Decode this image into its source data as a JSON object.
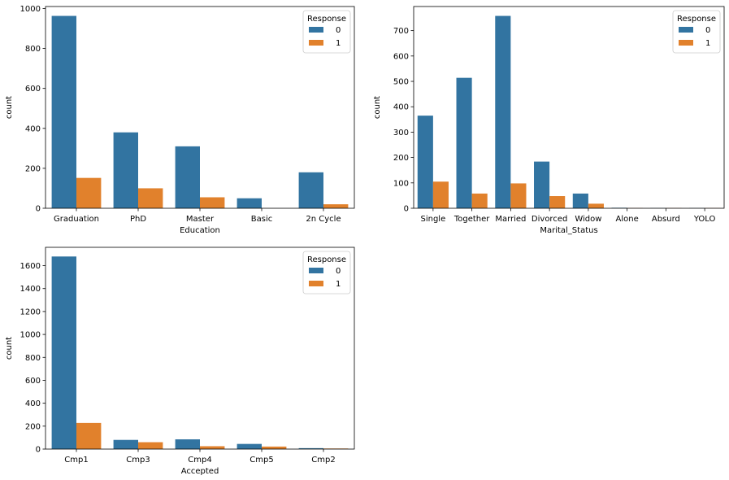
{
  "colors": {
    "series0": "#3274a1",
    "series1": "#e1812c"
  },
  "chart_data": [
    {
      "type": "bar",
      "xlabel": "Education",
      "ylabel": "count",
      "ylim": [
        0,
        1010
      ],
      "yticks": [
        0,
        200,
        400,
        600,
        800,
        1000
      ],
      "categories": [
        "Graduation",
        "PhD",
        "Master",
        "Basic",
        "2n Cycle"
      ],
      "legend": {
        "title": "Response",
        "position": "top-right"
      },
      "series": [
        {
          "name": "0",
          "values": [
            963,
            380,
            310,
            50,
            180
          ]
        },
        {
          "name": "1",
          "values": [
            152,
            100,
            55,
            0,
            20
          ]
        }
      ]
    },
    {
      "type": "bar",
      "xlabel": "Marital_Status",
      "ylabel": "count",
      "ylim": [
        0,
        795
      ],
      "yticks": [
        0,
        100,
        200,
        300,
        400,
        500,
        600,
        700
      ],
      "categories": [
        "Single",
        "Together",
        "Married",
        "Divorced",
        "Widow",
        "Alone",
        "Absurd",
        "YOLO"
      ],
      "legend": {
        "title": "Response",
        "position": "top-right"
      },
      "series": [
        {
          "name": "0",
          "values": [
            365,
            514,
            758,
            184,
            58,
            2,
            1,
            1
          ]
        },
        {
          "name": "1",
          "values": [
            105,
            58,
            98,
            48,
            18,
            1,
            1,
            1
          ]
        }
      ]
    },
    {
      "type": "bar",
      "xlabel": "Accepted",
      "ylabel": "count",
      "ylim": [
        0,
        1760
      ],
      "yticks": [
        0,
        200,
        400,
        600,
        800,
        1000,
        1200,
        1400,
        1600
      ],
      "categories": [
        "Cmp1",
        "Cmp3",
        "Cmp4",
        "Cmp5",
        "Cmp2"
      ],
      "legend": {
        "title": "Response",
        "position": "top-right"
      },
      "series": [
        {
          "name": "0",
          "values": [
            1680,
            80,
            85,
            45,
            8
          ]
        },
        {
          "name": "1",
          "values": [
            228,
            60,
            25,
            22,
            5
          ]
        }
      ]
    }
  ]
}
